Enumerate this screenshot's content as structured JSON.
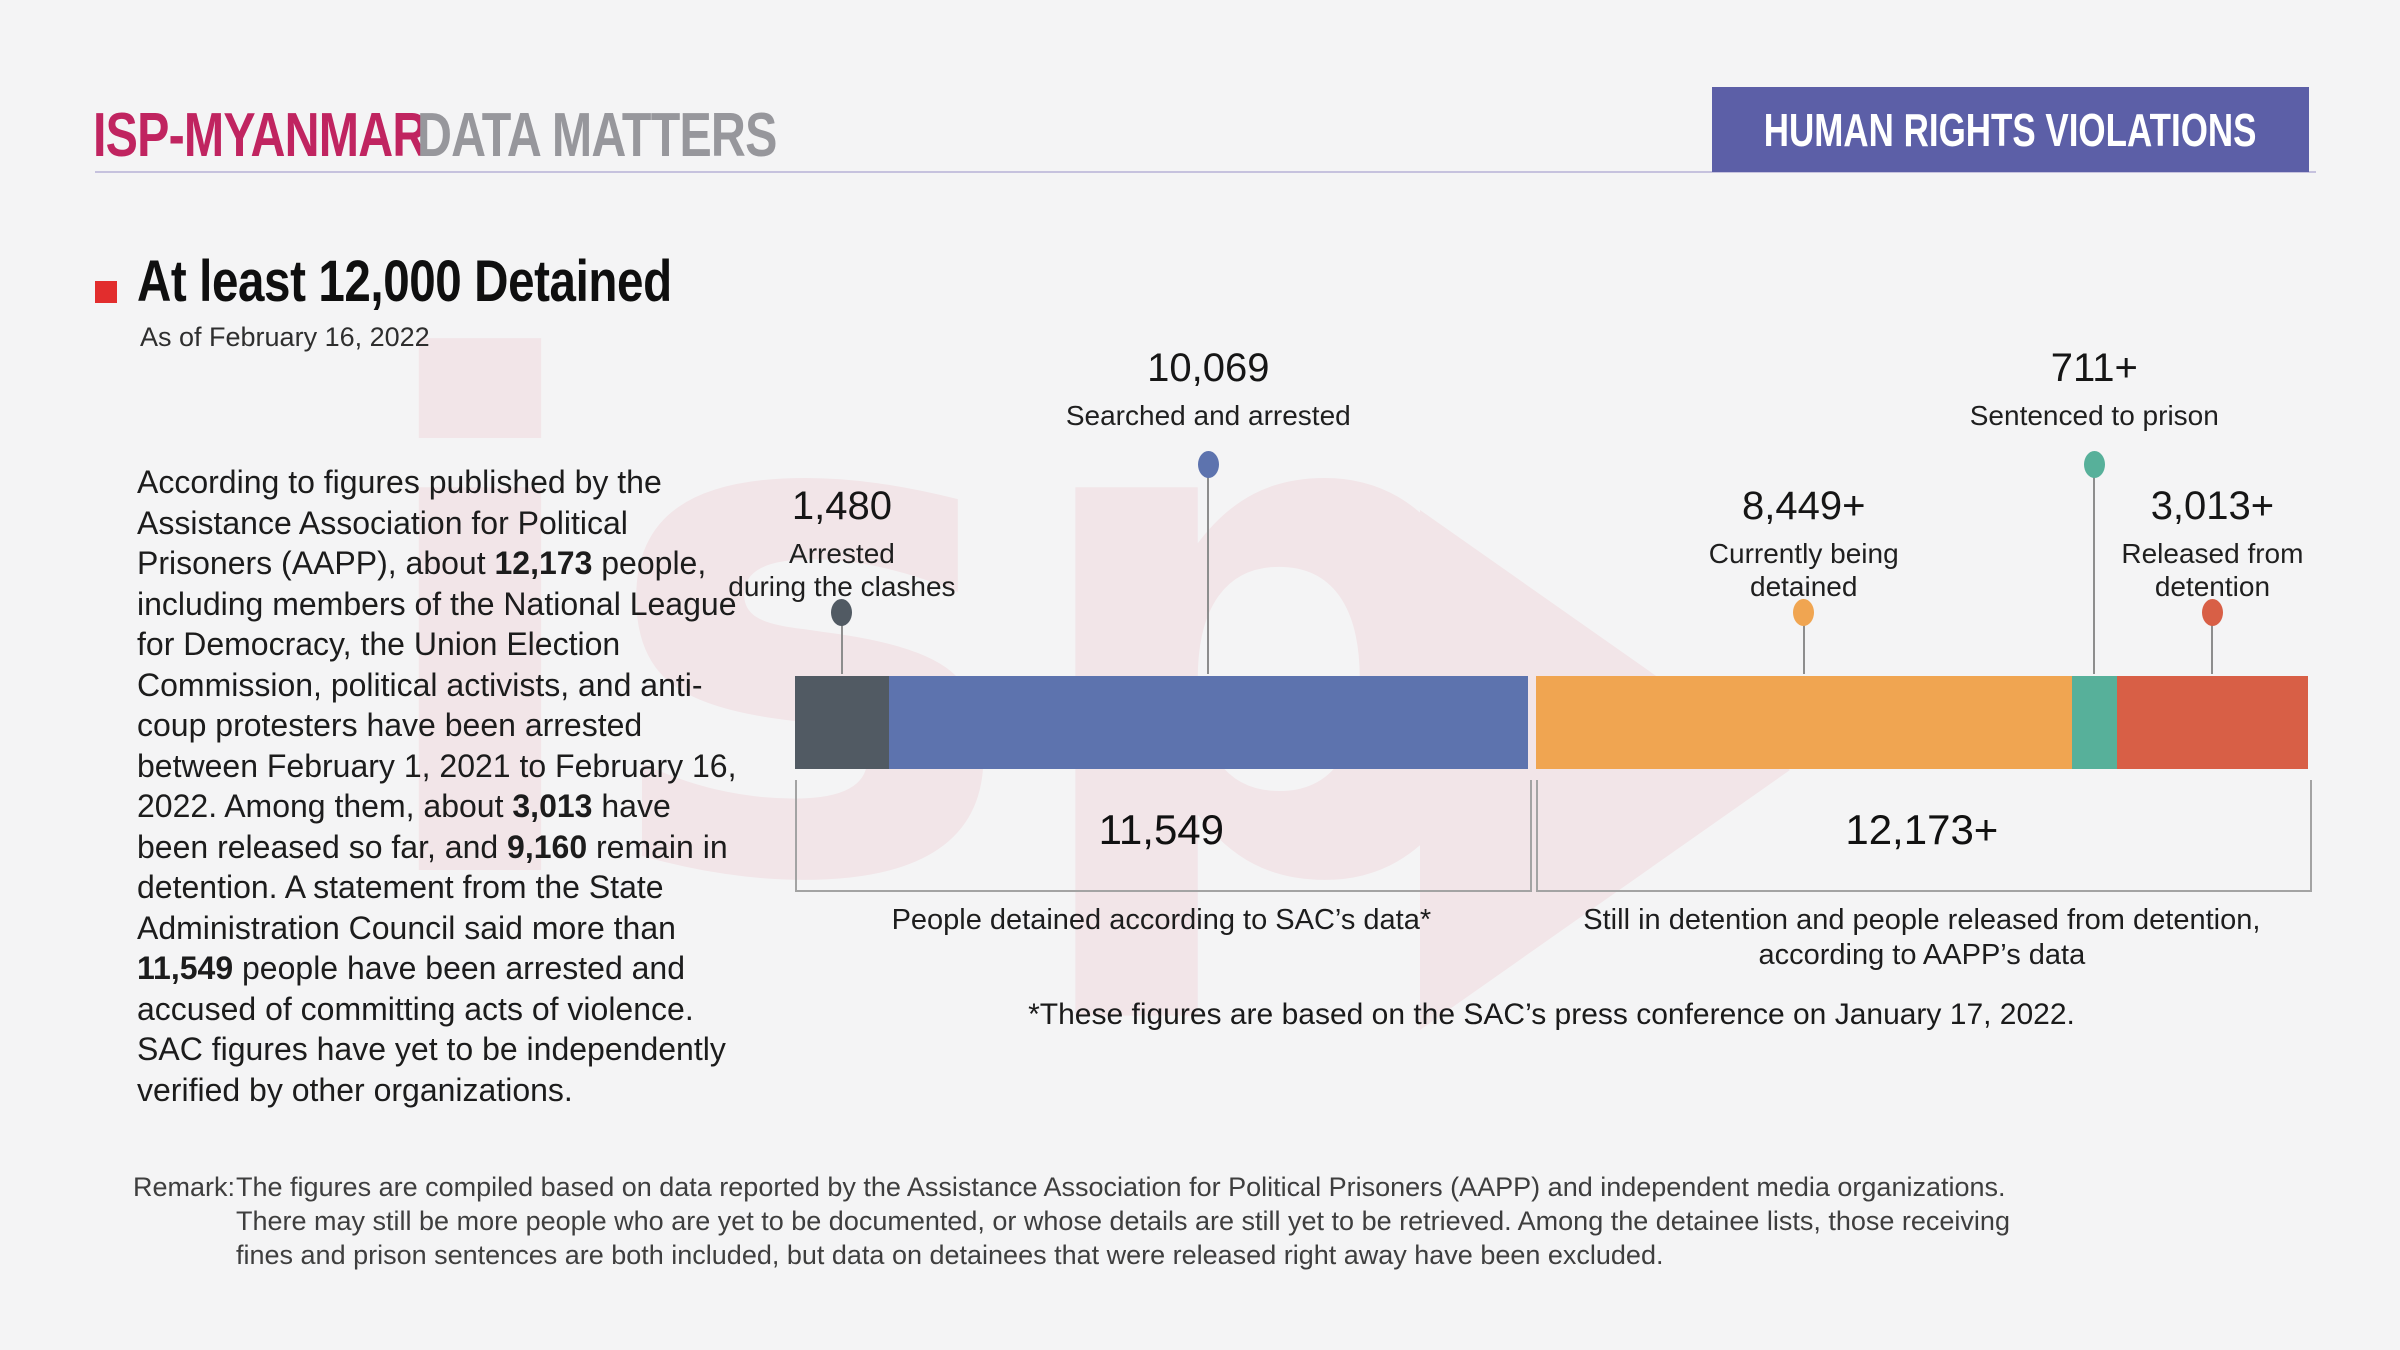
{
  "header": {
    "brand_primary": "ISP-MYANMAR",
    "brand_secondary": "DATA MATTERS",
    "banner_label": "HUMAN RIGHTS VIOLATIONS",
    "banner_color": "#5c5fa7",
    "brand_primary_color": "#c02460",
    "brand_secondary_color": "#97979c"
  },
  "title": {
    "heading": "At least 12,000 Detained",
    "as_of": "As of February 16, 2022",
    "bullet_color": "#e22d2d"
  },
  "paragraph": {
    "segments": [
      {
        "text": "According to figures published by the Assistance Association for Political Prisoners (AAPP), about ",
        "bold": false
      },
      {
        "text": "12,173",
        "bold": true
      },
      {
        "text": " people, including members of the National League for Democracy, the Union Election Commission, political activists, and anti-coup protesters have been arrested between February 1, 2021 to February 16, 2022. Among them, about ",
        "bold": false
      },
      {
        "text": "3,013",
        "bold": true
      },
      {
        "text": " have been released so far, and ",
        "bold": false
      },
      {
        "text": "9,160",
        "bold": true
      },
      {
        "text": " remain in detention. A statement from the State Administration Council said more than ",
        "bold": false
      },
      {
        "text": "11,549",
        "bold": true
      },
      {
        "text": " people have been arrested and accused of committing acts of violence. SAC figures have yet to be independently verified by other organizations.",
        "bold": false
      }
    ]
  },
  "chart_data": {
    "type": "bar",
    "orientation": "horizontal-stacked",
    "unit": "people",
    "series": [
      {
        "name": "Arrested during the clashes",
        "name_lines": [
          "Arrested",
          "during the clashes"
        ],
        "value": 1480,
        "value_label": "1,480",
        "color": "#515a63"
      },
      {
        "name": "Searched and arrested",
        "name_lines": [
          "Searched and arrested"
        ],
        "value": 10069,
        "value_label": "10,069",
        "color": "#5d73ae"
      },
      {
        "name": "Currently being detained",
        "name_lines": [
          "Currently being",
          "detained"
        ],
        "value": 8449,
        "value_label": "8,449+",
        "color": "#f0a551"
      },
      {
        "name": "Sentenced to prison",
        "name_lines": [
          "Sentenced to prison"
        ],
        "value": 711,
        "value_label": "711+",
        "color": "#57b09a"
      },
      {
        "name": "Released from detention",
        "name_lines": [
          "Released from",
          "detention"
        ],
        "value": 3013,
        "value_label": "3,013+",
        "color": "#d85f46"
      }
    ],
    "groups": [
      {
        "name": "SAC",
        "segment_indexes": [
          0,
          1
        ],
        "total": 11549,
        "total_label": "11,549",
        "caption": "People detained according to SAC’s data*",
        "caption_lines": [
          "People detained according to SAC’s data*"
        ]
      },
      {
        "name": "AAPP",
        "segment_indexes": [
          2,
          3,
          4
        ],
        "total": 12173,
        "total_label": "12,173+",
        "caption": "Still in detention and people released from detention, according to AAPP’s data",
        "caption_lines": [
          "Still in detention and people released from detention,",
          "according to AAPP’s data"
        ]
      }
    ],
    "footnote": "*These figures are based on the SAC’s press conference on January 17, 2022."
  },
  "remark": {
    "label": "Remark:",
    "text": "The figures are compiled based on data reported by the Assistance Association for Political Prisoners (AAPP) and independent media organizations. There may still be more people who are yet to be documented, or whose details are still yet to be retrieved. Among the detainee lists, those receiving fines and prison sentences are both included, but data on detainees that were released right away have been excluded."
  },
  "watermark": {
    "text": "isp",
    "color": "#f2e5e8"
  }
}
